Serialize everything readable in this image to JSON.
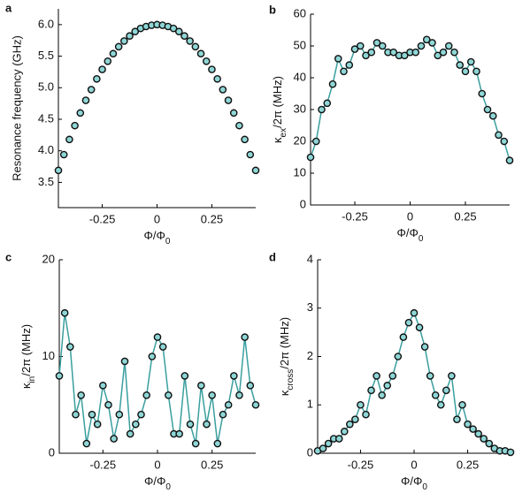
{
  "chart_data": [
    {
      "type": "scatter",
      "panel_label": "a",
      "ylabel": "Resonance frequency (GHz)",
      "xlabel": [
        "Φ/Φ",
        "0"
      ],
      "x": [
        -0.45,
        -0.425,
        -0.4,
        -0.375,
        -0.35,
        -0.325,
        -0.3,
        -0.275,
        -0.25,
        -0.225,
        -0.2,
        -0.175,
        -0.15,
        -0.125,
        -0.1,
        -0.075,
        -0.05,
        -0.025,
        0,
        0.025,
        0.05,
        0.075,
        0.1,
        0.125,
        0.15,
        0.175,
        0.2,
        0.225,
        0.25,
        0.275,
        0.3,
        0.325,
        0.35,
        0.375,
        0.4,
        0.425,
        0.45
      ],
      "values": [
        3.69,
        3.94,
        4.18,
        4.4,
        4.6,
        4.8,
        4.97,
        5.14,
        5.29,
        5.42,
        5.54,
        5.65,
        5.74,
        5.82,
        5.89,
        5.94,
        5.97,
        5.99,
        6.0,
        5.99,
        5.97,
        5.94,
        5.89,
        5.82,
        5.74,
        5.65,
        5.54,
        5.42,
        5.29,
        5.14,
        4.97,
        4.8,
        4.6,
        4.4,
        4.18,
        3.94,
        3.69
      ],
      "color": "#8fd6d6",
      "line_color": "#3a9e9e",
      "xlim": [
        -0.45,
        0.45
      ],
      "xticks": [
        -0.25,
        0,
        0.25
      ],
      "ylim": [
        3.1,
        6.25
      ],
      "yticks": [
        3.5,
        {
          "value": 4,
          "label": "4.0"
        },
        4.5,
        {
          "value": 5,
          "label": "5.0"
        },
        5.5,
        {
          "value": 6,
          "label": "6.0"
        }
      ]
    },
    {
      "type": "line",
      "panel_label": "b",
      "ylabel": [
        "κ",
        "ex",
        "/2π (MHz)"
      ],
      "xlabel": [
        "Φ/Φ",
        "0"
      ],
      "x": [
        -0.45,
        -0.425,
        -0.4,
        -0.375,
        -0.35,
        -0.325,
        -0.3,
        -0.275,
        -0.25,
        -0.225,
        -0.2,
        -0.175,
        -0.15,
        -0.125,
        -0.1,
        -0.075,
        -0.05,
        -0.025,
        0,
        0.025,
        0.05,
        0.075,
        0.1,
        0.125,
        0.15,
        0.175,
        0.2,
        0.225,
        0.25,
        0.275,
        0.3,
        0.325,
        0.35,
        0.375,
        0.4,
        0.425,
        0.45
      ],
      "values": [
        15,
        20,
        30,
        32,
        38,
        46,
        42,
        44,
        49,
        50,
        47,
        48,
        51,
        50,
        48,
        48,
        47,
        47,
        48,
        48,
        50,
        52,
        51,
        47,
        48,
        50,
        48,
        44,
        42,
        45,
        42,
        35,
        30,
        28,
        22,
        20,
        14
      ],
      "color": "#8fd6d6",
      "line_color": "#3a9e9e",
      "xlim": [
        -0.45,
        0.45
      ],
      "xticks": [
        -0.25,
        0,
        0.25
      ],
      "ylim": [
        0,
        60
      ],
      "yticks": [
        0,
        10,
        20,
        30,
        40,
        50,
        60
      ]
    },
    {
      "type": "line",
      "panel_label": "c",
      "ylabel": [
        "κ",
        "in",
        "/2π (MHz)"
      ],
      "xlabel": [
        "Φ/Φ",
        "0"
      ],
      "x": [
        -0.45,
        -0.425,
        -0.4,
        -0.375,
        -0.35,
        -0.325,
        -0.3,
        -0.275,
        -0.25,
        -0.225,
        -0.2,
        -0.175,
        -0.15,
        -0.125,
        -0.1,
        -0.075,
        -0.05,
        -0.025,
        0,
        0.025,
        0.05,
        0.075,
        0.1,
        0.125,
        0.15,
        0.175,
        0.2,
        0.225,
        0.25,
        0.275,
        0.3,
        0.325,
        0.35,
        0.375,
        0.4,
        0.425,
        0.45
      ],
      "values": [
        8,
        14.5,
        11,
        4,
        6,
        1,
        4,
        3,
        7,
        5,
        1.5,
        4,
        9.5,
        2,
        3,
        4,
        6,
        10,
        12,
        11,
        6,
        2,
        2,
        8,
        3,
        1,
        7,
        3,
        6,
        1,
        4,
        5,
        8,
        6,
        12,
        7,
        5
      ],
      "color": "#8fd6d6",
      "line_color": "#3a9e9e",
      "xlim": [
        -0.45,
        0.45
      ],
      "xticks": [
        -0.25,
        0,
        0.25
      ],
      "ylim": [
        0,
        20
      ],
      "yticks": [
        0,
        10,
        20
      ]
    },
    {
      "type": "line",
      "panel_label": "d",
      "ylabel": [
        "κ",
        "cross",
        "/2π (MHz)"
      ],
      "xlabel": [
        "Φ/Φ",
        "0"
      ],
      "x": [
        -0.45,
        -0.425,
        -0.4,
        -0.375,
        -0.35,
        -0.325,
        -0.3,
        -0.275,
        -0.25,
        -0.225,
        -0.2,
        -0.175,
        -0.15,
        -0.125,
        -0.1,
        -0.075,
        -0.05,
        -0.025,
        0,
        0.025,
        0.05,
        0.075,
        0.1,
        0.125,
        0.15,
        0.175,
        0.2,
        0.225,
        0.25,
        0.275,
        0.3,
        0.325,
        0.35,
        0.375,
        0.4,
        0.425,
        0.45
      ],
      "values": [
        0.05,
        0.1,
        0.2,
        0.3,
        0.3,
        0.45,
        0.6,
        0.7,
        1.0,
        0.8,
        1.3,
        1.6,
        1.2,
        1.4,
        1.6,
        2.0,
        2.4,
        2.7,
        2.9,
        2.6,
        2.2,
        1.6,
        1.2,
        1.0,
        1.3,
        1.6,
        0.7,
        1.0,
        0.6,
        0.5,
        0.4,
        0.3,
        0.2,
        0.1,
        0.05,
        0.05,
        0.02
      ],
      "color": "#8fd6d6",
      "line_color": "#3a9e9e",
      "xlim": [
        -0.45,
        0.45
      ],
      "xticks": [
        -0.25,
        0,
        0.25
      ],
      "ylim": [
        0,
        4
      ],
      "yticks": [
        0,
        1,
        2,
        3,
        4
      ]
    }
  ]
}
